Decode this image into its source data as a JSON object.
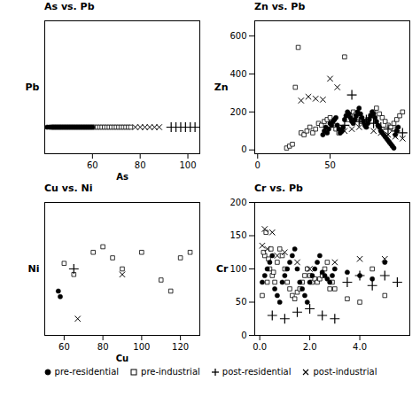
{
  "chart_data": [
    {
      "type": "scatter",
      "title": "As vs. Pb",
      "xlabel": "As",
      "ylabel": "Pb",
      "xlim": [
        40,
        105
      ],
      "ylim": [
        -5,
        30
      ],
      "xticks": [
        60,
        80,
        100
      ],
      "tick_labels": "x",
      "series": [
        {
          "name": "pre-residential",
          "marker": "circle",
          "color": "black",
          "x": [
            50,
            51,
            52,
            53,
            54,
            55,
            56,
            57,
            58,
            49,
            48,
            47,
            46,
            45,
            44,
            43,
            42,
            41,
            59,
            60
          ],
          "values": [
            2,
            2,
            2,
            2,
            2,
            2,
            2,
            2,
            2,
            2,
            2,
            2,
            2,
            2,
            2,
            2,
            2,
            2,
            2,
            2
          ]
        },
        {
          "name": "pre-industrial",
          "marker": "square",
          "color": "black",
          "x": [
            43,
            44,
            45,
            46,
            47,
            48,
            49,
            50,
            51,
            52,
            53,
            54,
            55,
            56,
            57,
            58,
            59,
            60,
            61,
            62,
            63,
            64,
            65,
            66,
            67,
            68,
            69,
            70,
            71,
            72,
            73,
            74,
            75,
            76
          ],
          "values": [
            2,
            2,
            2,
            2,
            2,
            2,
            2,
            2,
            2,
            2,
            2,
            2,
            2,
            2,
            2,
            2,
            2,
            2,
            2,
            2,
            2,
            2,
            2,
            2,
            2,
            2,
            2,
            2,
            2,
            2,
            2,
            2,
            2,
            2
          ]
        },
        {
          "name": "post-residential",
          "marker": "plus",
          "color": "black",
          "x": [
            93,
            95,
            97,
            99,
            101,
            103
          ],
          "values": [
            2,
            2,
            2,
            2,
            2,
            2
          ]
        },
        {
          "name": "post-industrial",
          "marker": "x",
          "color": "black",
          "x": [
            78,
            80,
            82,
            84,
            86,
            88
          ],
          "values": [
            2,
            2,
            2,
            2,
            2,
            2
          ]
        }
      ]
    },
    {
      "type": "scatter",
      "title": "Zn vs. Pb",
      "ylabel": "Zn",
      "xlim": [
        -2,
        105
      ],
      "ylim": [
        -20,
        680
      ],
      "xticks": [
        0,
        50
      ],
      "yticks": [
        0,
        200,
        400,
        600
      ],
      "series": [
        {
          "name": "pre-residential",
          "marker": "circle",
          "color": "black",
          "x": [
            45,
            46,
            47,
            48,
            49,
            50,
            51,
            52,
            53,
            54,
            55,
            56,
            57,
            58,
            59,
            60,
            61,
            62,
            63,
            64,
            65,
            66,
            67,
            68,
            69,
            70,
            71,
            72,
            73,
            74,
            75,
            76,
            77,
            78,
            79,
            80,
            81,
            82,
            83,
            84,
            85,
            86,
            87,
            88,
            89,
            90,
            91,
            92,
            93,
            94,
            95,
            96,
            97
          ],
          "values": [
            80,
            100,
            120,
            90,
            110,
            140,
            130,
            150,
            160,
            170,
            130,
            110,
            90,
            100,
            120,
            160,
            180,
            200,
            190,
            170,
            150,
            140,
            160,
            180,
            200,
            220,
            190,
            170,
            150,
            130,
            120,
            140,
            160,
            180,
            200,
            190,
            170,
            150,
            130,
            120,
            100,
            90,
            80,
            70,
            60,
            50,
            40,
            30,
            20,
            10,
            80,
            100,
            120
          ]
        },
        {
          "name": "pre-industrial",
          "marker": "square",
          "color": "black",
          "x": [
            20,
            22,
            24,
            26,
            28,
            30,
            32,
            34,
            36,
            38,
            40,
            42,
            44,
            46,
            48,
            50,
            52,
            54,
            56,
            58,
            60,
            62,
            64,
            66,
            68,
            70,
            72,
            74,
            76,
            78,
            80,
            82,
            84,
            86,
            88,
            90,
            92,
            94,
            96,
            98,
            100
          ],
          "values": [
            10,
            20,
            30,
            330,
            540,
            90,
            80,
            100,
            120,
            90,
            110,
            140,
            130,
            150,
            160,
            170,
            130,
            110,
            90,
            100,
            490,
            160,
            180,
            200,
            190,
            170,
            150,
            140,
            160,
            180,
            200,
            220,
            190,
            170,
            150,
            130,
            120,
            140,
            160,
            180,
            200
          ]
        },
        {
          "name": "post-residential",
          "marker": "plus",
          "color": "black",
          "x": [
            60,
            65,
            70,
            75,
            80,
            85,
            90,
            95,
            100
          ],
          "values": [
            130,
            290,
            150,
            160,
            140,
            120,
            110,
            100,
            90
          ]
        },
        {
          "name": "post-industrial",
          "marker": "x",
          "color": "black",
          "x": [
            30,
            35,
            40,
            45,
            50,
            55,
            60,
            65,
            70,
            75,
            80,
            85,
            90,
            95,
            100
          ],
          "values": [
            260,
            280,
            270,
            265,
            375,
            330,
            100,
            110,
            120,
            130,
            100,
            90,
            80,
            70,
            60
          ]
        }
      ]
    },
    {
      "type": "scatter",
      "title": "Cu vs. Ni",
      "xlabel": "Cu",
      "ylabel": "Ni",
      "xlim": [
        50,
        130
      ],
      "ylim": [
        0,
        120
      ],
      "xticks": [
        60,
        80,
        100,
        120
      ],
      "tick_labels": "x",
      "series": [
        {
          "name": "pre-residential",
          "marker": "circle",
          "color": "black",
          "x": [
            57,
            58
          ],
          "values": [
            40,
            35
          ]
        },
        {
          "name": "pre-industrial",
          "marker": "square",
          "color": "black",
          "x": [
            60,
            65,
            75,
            80,
            85,
            90,
            100,
            110,
            115,
            120,
            125
          ],
          "values": [
            65,
            55,
            75,
            80,
            70,
            60,
            75,
            50,
            40,
            70,
            75
          ]
        },
        {
          "name": "post-residential",
          "marker": "plus",
          "color": "black",
          "x": [
            65
          ],
          "values": [
            60
          ]
        },
        {
          "name": "post-industrial",
          "marker": "x",
          "color": "black",
          "x": [
            67,
            90
          ],
          "values": [
            15,
            55
          ]
        }
      ]
    },
    {
      "type": "scatter",
      "title": "Cr vs. Pb",
      "ylabel": "Cr",
      "xlim": [
        -0.2,
        6
      ],
      "ylim": [
        0,
        200
      ],
      "xticks": [
        0,
        2,
        4
      ],
      "yticks": [
        0,
        50,
        100,
        150,
        200
      ],
      "series": [
        {
          "name": "pre-residential",
          "marker": "circle",
          "color": "black",
          "x": [
            0.1,
            0.2,
            0.3,
            0.4,
            0.5,
            0.6,
            0.7,
            0.8,
            0.9,
            1.0,
            1.1,
            1.2,
            1.3,
            1.4,
            1.5,
            1.6,
            1.7,
            1.8,
            1.9,
            2.0,
            2.1,
            2.2,
            2.3,
            2.4,
            2.5,
            2.6,
            2.7,
            2.8,
            2.9,
            3.0,
            3.5,
            4.0,
            4.5,
            5.0
          ],
          "values": [
            80,
            90,
            100,
            110,
            120,
            70,
            60,
            50,
            80,
            90,
            100,
            110,
            120,
            130,
            100,
            80,
            70,
            60,
            50,
            80,
            90,
            100,
            110,
            120,
            95,
            90,
            85,
            80,
            90,
            100,
            95,
            90,
            85,
            110
          ]
        },
        {
          "name": "pre-industrial",
          "marker": "square",
          "color": "black",
          "x": [
            0.1,
            0.2,
            0.3,
            0.4,
            0.5,
            0.6,
            0.7,
            0.8,
            0.9,
            1.0,
            1.1,
            1.2,
            1.3,
            1.4,
            1.5,
            1.6,
            1.7,
            1.8,
            1.9,
            2.0,
            2.1,
            2.2,
            2.3,
            2.4,
            2.5,
            2.6,
            2.7,
            2.8,
            2.9,
            3.0,
            3.5,
            4.0,
            4.5,
            5.0,
            0.15,
            0.25,
            0.35,
            0.45,
            0.55
          ],
          "values": [
            60,
            120,
            80,
            100,
            90,
            80,
            110,
            130,
            120,
            100,
            80,
            70,
            60,
            55,
            65,
            70,
            80,
            90,
            100,
            90,
            80,
            85,
            80,
            85,
            90,
            100,
            110,
            70,
            80,
            70,
            55,
            50,
            100,
            60,
            125,
            155,
            115,
            130,
            95
          ]
        },
        {
          "name": "post-residential",
          "marker": "plus",
          "color": "black",
          "x": [
            0.5,
            1.0,
            1.5,
            2.0,
            2.5,
            3.0,
            3.5,
            4.0,
            4.5,
            5.0,
            5.5
          ],
          "values": [
            30,
            25,
            35,
            40,
            30,
            25,
            80,
            90,
            75,
            90,
            80
          ]
        },
        {
          "name": "post-industrial",
          "marker": "x",
          "color": "black",
          "x": [
            0.1,
            0.2,
            0.3,
            0.5,
            0.7,
            1.0,
            1.5,
            2.0,
            3.0,
            4.0,
            5.0
          ],
          "values": [
            135,
            160,
            130,
            155,
            120,
            125,
            110,
            100,
            110,
            115,
            115
          ]
        }
      ]
    }
  ]
}
